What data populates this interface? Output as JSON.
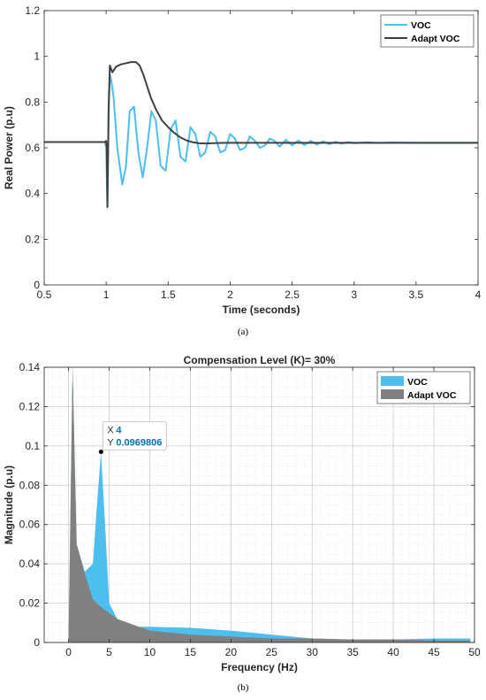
{
  "chart_data": [
    {
      "type": "line",
      "title": "",
      "xlabel": "Time (seconds)",
      "ylabel": "Real Power (p.u)",
      "xlim": [
        0.5,
        4
      ],
      "ylim": [
        0,
        1.2
      ],
      "xticks": [
        "0.5",
        "1",
        "1.5",
        "2",
        "2.5",
        "3",
        "3.5",
        "4"
      ],
      "yticks": [
        "0",
        "0.2",
        "0.4",
        "0.6",
        "0.8",
        "1",
        "1.2"
      ],
      "grid": false,
      "legend_position": "top-right",
      "caption": "(a)",
      "series": [
        {
          "name": "VOC",
          "color": "#4DBEEE",
          "x": [
            0.5,
            0.99,
            1.0,
            1.01,
            1.02,
            1.03,
            1.04,
            1.06,
            1.09,
            1.13,
            1.16,
            1.19,
            1.225,
            1.26,
            1.295,
            1.33,
            1.365,
            1.4,
            1.44,
            1.48,
            1.52,
            1.56,
            1.6,
            1.64,
            1.68,
            1.72,
            1.76,
            1.8,
            1.84,
            1.88,
            1.92,
            1.96,
            2.0,
            2.04,
            2.08,
            2.12,
            2.16,
            2.2,
            2.24,
            2.28,
            2.32,
            2.36,
            2.4,
            2.45,
            2.5,
            2.55,
            2.6,
            2.65,
            2.7,
            2.75,
            2.8,
            2.85,
            2.9,
            2.95,
            3.0,
            3.1,
            3.2,
            3.3,
            3.5,
            4.0
          ],
          "y": [
            0.625,
            0.625,
            0.6,
            0.34,
            0.75,
            0.92,
            0.9,
            0.82,
            0.6,
            0.44,
            0.52,
            0.76,
            0.78,
            0.58,
            0.47,
            0.6,
            0.76,
            0.72,
            0.52,
            0.5,
            0.68,
            0.72,
            0.56,
            0.54,
            0.69,
            0.66,
            0.56,
            0.58,
            0.67,
            0.65,
            0.58,
            0.59,
            0.66,
            0.64,
            0.59,
            0.6,
            0.65,
            0.63,
            0.6,
            0.61,
            0.64,
            0.63,
            0.605,
            0.635,
            0.61,
            0.632,
            0.612,
            0.63,
            0.614,
            0.628,
            0.616,
            0.626,
            0.618,
            0.625,
            0.62,
            0.624,
            0.621,
            0.623,
            0.622,
            0.622
          ]
        },
        {
          "name": "Adapt VOC",
          "color": "#404040",
          "x": [
            0.5,
            0.99,
            1.0,
            1.005,
            1.01,
            1.02,
            1.03,
            1.05,
            1.08,
            1.12,
            1.16,
            1.2,
            1.24,
            1.27,
            1.3,
            1.33,
            1.36,
            1.4,
            1.45,
            1.5,
            1.55,
            1.6,
            1.65,
            1.7,
            1.75,
            1.8,
            1.85,
            1.9,
            2.0,
            2.2,
            2.5,
            3.0,
            4.0
          ],
          "y": [
            0.625,
            0.625,
            0.63,
            0.6,
            0.34,
            0.78,
            0.96,
            0.93,
            0.955,
            0.965,
            0.97,
            0.975,
            0.975,
            0.96,
            0.92,
            0.87,
            0.82,
            0.77,
            0.72,
            0.69,
            0.665,
            0.645,
            0.632,
            0.624,
            0.62,
            0.619,
            0.62,
            0.621,
            0.622,
            0.622,
            0.622,
            0.622,
            0.622
          ]
        }
      ]
    },
    {
      "type": "area",
      "title": "Compensation Level (K)= 30%",
      "xlabel": "Frequency (Hz)",
      "ylabel": "Magnitude (p.u)",
      "xlim": [
        -3,
        50
      ],
      "ylim": [
        0,
        0.14
      ],
      "xticks": [
        "0",
        "5",
        "10",
        "15",
        "20",
        "25",
        "30",
        "35",
        "40",
        "45",
        "50"
      ],
      "yticks": [
        "0",
        "0.02",
        "0.04",
        "0.06",
        "0.08",
        "0.1",
        "0.12",
        "0.14"
      ],
      "grid": true,
      "legend_position": "top-right",
      "caption": "(b)",
      "datatip": {
        "x_label": "X",
        "x_value": "4",
        "y_label": "Y",
        "y_value": "0.0969806",
        "x": 4,
        "y": 0.0969806
      },
      "series": [
        {
          "name": "VOC",
          "color": "#4DBEEE",
          "x": [
            0,
            0.5,
            1,
            2,
            3,
            3.5,
            4,
            4.5,
            5,
            6,
            8,
            10,
            15,
            20,
            25,
            30,
            35,
            40,
            45,
            49.5
          ],
          "y": [
            0,
            0.14,
            0.05,
            0.036,
            0.04,
            0.07,
            0.097,
            0.06,
            0.02,
            0.012,
            0.008,
            0.008,
            0.0075,
            0.006,
            0.004,
            0.002,
            0.0015,
            0.0015,
            0.002,
            0.002
          ]
        },
        {
          "name": "Adapt VOC",
          "color": "#808080",
          "x": [
            0,
            0.5,
            1,
            2,
            3,
            4,
            5,
            6,
            8,
            10,
            15,
            20,
            25,
            30,
            35,
            40,
            45,
            49.5
          ],
          "y": [
            0,
            0.14,
            0.05,
            0.035,
            0.022,
            0.018,
            0.015,
            0.012,
            0.009,
            0.006,
            0.004,
            0.003,
            0.002,
            0.002,
            0.0015,
            0.0015,
            0.001,
            0.001
          ]
        }
      ]
    }
  ]
}
